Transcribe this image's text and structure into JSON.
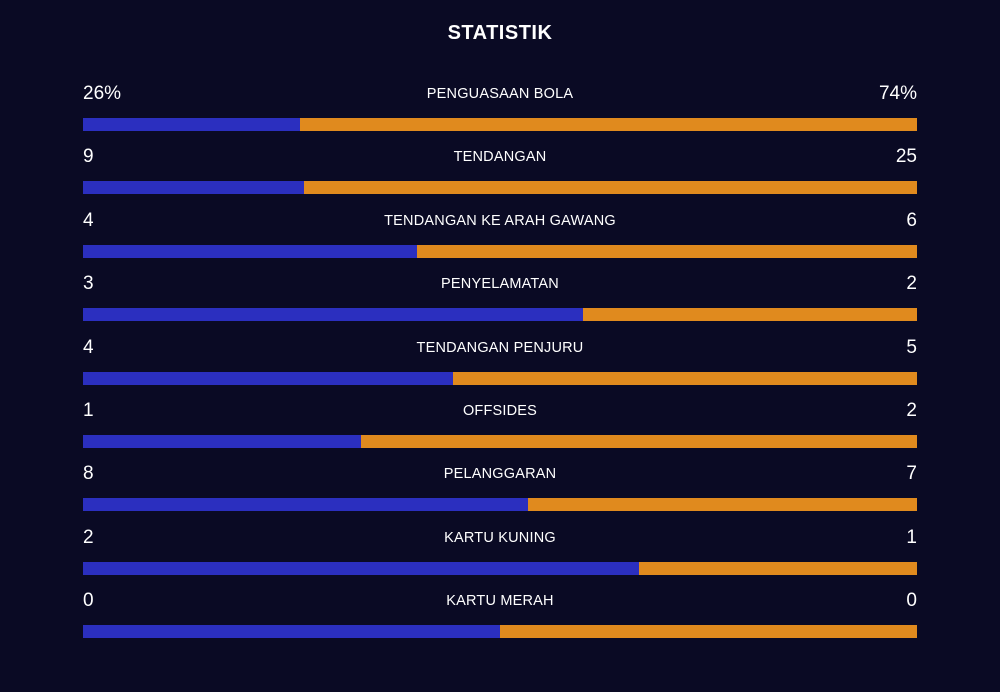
{
  "title": "STATISTIK",
  "colors": {
    "background": "#0a0a24",
    "home_bar": "#2b2fbf",
    "away_bar": "#e08a1e",
    "text": "#ffffff"
  },
  "stats": [
    {
      "label": "PENGUASAAN BOLA",
      "home": "26%",
      "away": "74%",
      "home_share": 0.26
    },
    {
      "label": "TENDANGAN",
      "home": "9",
      "away": "25",
      "home_share": 0.265
    },
    {
      "label": "TENDANGAN KE ARAH GAWANG",
      "home": "4",
      "away": "6",
      "home_share": 0.4
    },
    {
      "label": "PENYELAMATAN",
      "home": "3",
      "away": "2",
      "home_share": 0.6
    },
    {
      "label": "TENDANGAN PENJURU",
      "home": "4",
      "away": "5",
      "home_share": 0.444
    },
    {
      "label": "OFFSIDES",
      "home": "1",
      "away": "2",
      "home_share": 0.333
    },
    {
      "label": "PELANGGARAN",
      "home": "8",
      "away": "7",
      "home_share": 0.533
    },
    {
      "label": "KARTU KUNING",
      "home": "2",
      "away": "1",
      "home_share": 0.667
    },
    {
      "label": "KARTU MERAH",
      "home": "0",
      "away": "0",
      "home_share": 0.5
    }
  ]
}
